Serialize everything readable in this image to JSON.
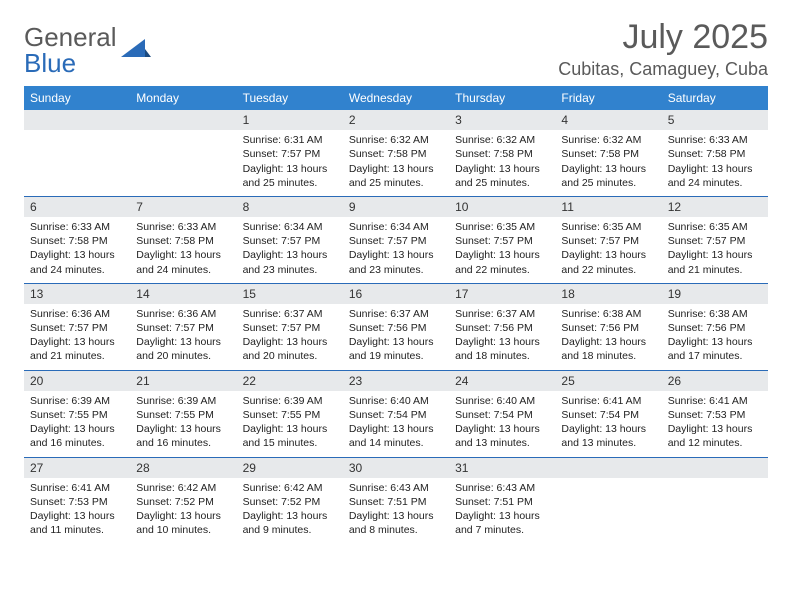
{
  "brand": {
    "part1": "General",
    "part2": "Blue"
  },
  "title": "July 2025",
  "location": "Cubitas, Camaguey, Cuba",
  "colors": {
    "header_bg": "#3182ce",
    "header_text": "#ffffff",
    "daynum_bg": "#e7e9eb",
    "divider": "#2a6bb8",
    "title_color": "#5a5a5a",
    "logo_gray": "#5a5a5a",
    "logo_blue": "#2a6bb8"
  },
  "dayNames": [
    "Sunday",
    "Monday",
    "Tuesday",
    "Wednesday",
    "Thursday",
    "Friday",
    "Saturday"
  ],
  "weeks": [
    [
      {
        "n": "",
        "sunrise": "",
        "sunset": "",
        "daylight": ""
      },
      {
        "n": "",
        "sunrise": "",
        "sunset": "",
        "daylight": ""
      },
      {
        "n": "1",
        "sunrise": "6:31 AM",
        "sunset": "7:57 PM",
        "daylight": "13 hours and 25 minutes."
      },
      {
        "n": "2",
        "sunrise": "6:32 AM",
        "sunset": "7:58 PM",
        "daylight": "13 hours and 25 minutes."
      },
      {
        "n": "3",
        "sunrise": "6:32 AM",
        "sunset": "7:58 PM",
        "daylight": "13 hours and 25 minutes."
      },
      {
        "n": "4",
        "sunrise": "6:32 AM",
        "sunset": "7:58 PM",
        "daylight": "13 hours and 25 minutes."
      },
      {
        "n": "5",
        "sunrise": "6:33 AM",
        "sunset": "7:58 PM",
        "daylight": "13 hours and 24 minutes."
      }
    ],
    [
      {
        "n": "6",
        "sunrise": "6:33 AM",
        "sunset": "7:58 PM",
        "daylight": "13 hours and 24 minutes."
      },
      {
        "n": "7",
        "sunrise": "6:33 AM",
        "sunset": "7:58 PM",
        "daylight": "13 hours and 24 minutes."
      },
      {
        "n": "8",
        "sunrise": "6:34 AM",
        "sunset": "7:57 PM",
        "daylight": "13 hours and 23 minutes."
      },
      {
        "n": "9",
        "sunrise": "6:34 AM",
        "sunset": "7:57 PM",
        "daylight": "13 hours and 23 minutes."
      },
      {
        "n": "10",
        "sunrise": "6:35 AM",
        "sunset": "7:57 PM",
        "daylight": "13 hours and 22 minutes."
      },
      {
        "n": "11",
        "sunrise": "6:35 AM",
        "sunset": "7:57 PM",
        "daylight": "13 hours and 22 minutes."
      },
      {
        "n": "12",
        "sunrise": "6:35 AM",
        "sunset": "7:57 PM",
        "daylight": "13 hours and 21 minutes."
      }
    ],
    [
      {
        "n": "13",
        "sunrise": "6:36 AM",
        "sunset": "7:57 PM",
        "daylight": "13 hours and 21 minutes."
      },
      {
        "n": "14",
        "sunrise": "6:36 AM",
        "sunset": "7:57 PM",
        "daylight": "13 hours and 20 minutes."
      },
      {
        "n": "15",
        "sunrise": "6:37 AM",
        "sunset": "7:57 PM",
        "daylight": "13 hours and 20 minutes."
      },
      {
        "n": "16",
        "sunrise": "6:37 AM",
        "sunset": "7:56 PM",
        "daylight": "13 hours and 19 minutes."
      },
      {
        "n": "17",
        "sunrise": "6:37 AM",
        "sunset": "7:56 PM",
        "daylight": "13 hours and 18 minutes."
      },
      {
        "n": "18",
        "sunrise": "6:38 AM",
        "sunset": "7:56 PM",
        "daylight": "13 hours and 18 minutes."
      },
      {
        "n": "19",
        "sunrise": "6:38 AM",
        "sunset": "7:56 PM",
        "daylight": "13 hours and 17 minutes."
      }
    ],
    [
      {
        "n": "20",
        "sunrise": "6:39 AM",
        "sunset": "7:55 PM",
        "daylight": "13 hours and 16 minutes."
      },
      {
        "n": "21",
        "sunrise": "6:39 AM",
        "sunset": "7:55 PM",
        "daylight": "13 hours and 16 minutes."
      },
      {
        "n": "22",
        "sunrise": "6:39 AM",
        "sunset": "7:55 PM",
        "daylight": "13 hours and 15 minutes."
      },
      {
        "n": "23",
        "sunrise": "6:40 AM",
        "sunset": "7:54 PM",
        "daylight": "13 hours and 14 minutes."
      },
      {
        "n": "24",
        "sunrise": "6:40 AM",
        "sunset": "7:54 PM",
        "daylight": "13 hours and 13 minutes."
      },
      {
        "n": "25",
        "sunrise": "6:41 AM",
        "sunset": "7:54 PM",
        "daylight": "13 hours and 13 minutes."
      },
      {
        "n": "26",
        "sunrise": "6:41 AM",
        "sunset": "7:53 PM",
        "daylight": "13 hours and 12 minutes."
      }
    ],
    [
      {
        "n": "27",
        "sunrise": "6:41 AM",
        "sunset": "7:53 PM",
        "daylight": "13 hours and 11 minutes."
      },
      {
        "n": "28",
        "sunrise": "6:42 AM",
        "sunset": "7:52 PM",
        "daylight": "13 hours and 10 minutes."
      },
      {
        "n": "29",
        "sunrise": "6:42 AM",
        "sunset": "7:52 PM",
        "daylight": "13 hours and 9 minutes."
      },
      {
        "n": "30",
        "sunrise": "6:43 AM",
        "sunset": "7:51 PM",
        "daylight": "13 hours and 8 minutes."
      },
      {
        "n": "31",
        "sunrise": "6:43 AM",
        "sunset": "7:51 PM",
        "daylight": "13 hours and 7 minutes."
      },
      {
        "n": "",
        "sunrise": "",
        "sunset": "",
        "daylight": ""
      },
      {
        "n": "",
        "sunrise": "",
        "sunset": "",
        "daylight": ""
      }
    ]
  ],
  "labels": {
    "sunrise": "Sunrise:",
    "sunset": "Sunset:",
    "daylight": "Daylight:"
  }
}
